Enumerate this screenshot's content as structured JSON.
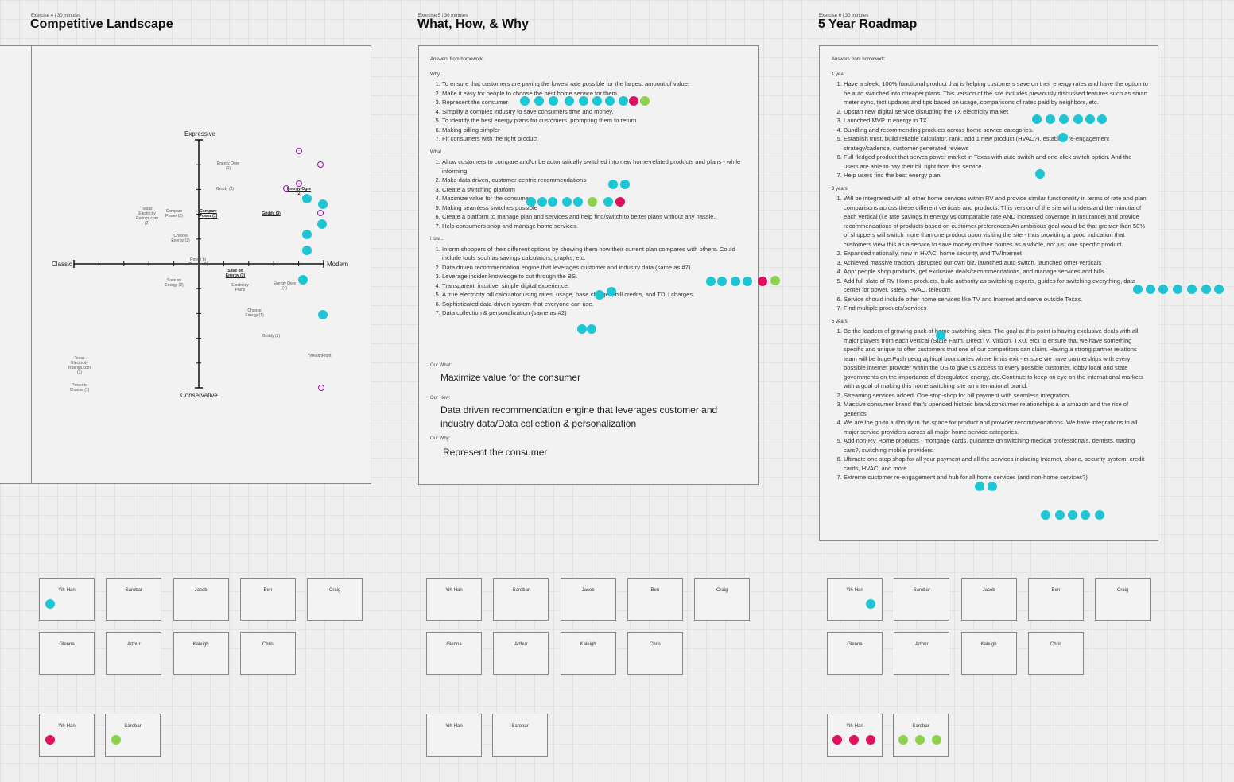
{
  "sections": [
    {
      "meta": "Exercise 4 | 30 minutes",
      "title": "Competitive Landscape",
      "landscape": {
        "axes": {
          "top": "Expressive",
          "bottom": "Conservative",
          "left": "Classic",
          "right": "Modern"
        },
        "labels": [
          "Energy Ogre (1)",
          "Griddy (2)",
          "Texas Electricity Ratings.com (2)",
          "Compare Power (2)",
          "Compare Power (1)",
          "Griddy (3)",
          "Energy Ogre (2)",
          "Choose Energy (2)",
          "Power to Choose (2)",
          "Save on Energy (3)",
          "Save on Energy (2)",
          "Electricity Plans",
          "Energy Ogre (4)",
          "Choose Energy (1)",
          "Griddy (1)",
          "*WealthFront",
          "Texas Electricity Ratings.com (1)",
          "Power to Choose (1)"
        ]
      },
      "boards": {
        "rows": [
          [
            "Yih-Han",
            "Sarobar",
            "Jacob",
            "Ben",
            "Craig"
          ],
          [
            "Glenna",
            "Arthur",
            "Kaleigh",
            "Chris"
          ]
        ],
        "bottom": [
          "Yih-Han",
          "Sarobar"
        ]
      }
    },
    {
      "meta": "Exercise 5 | 30 minutes",
      "title": "What, How, & Why",
      "answers": {
        "intro": "Answers from homework:",
        "groups": [
          {
            "heading": "Why...",
            "items": [
              "To ensure that customers are paying the lowest rate possible for the largest amount of value.",
              "Make it easy for people to choose the best home service for them.",
              "Represent the consumer",
              "Simplify a complex industry to save consumers time and money.",
              "To identify the best energy plans for customers, prompting them to return",
              "Making billing simpler",
              "Fit consumers with the right product"
            ]
          },
          {
            "heading": "What...",
            "items": [
              "Allow customers to compare and/or be automatically switched into new home-related products and plans - while informing",
              "Make data driven, customer-centric recommendations",
              "Create a switching platform",
              "Maximize value for the consumer",
              "Making seamless switches possible",
              "Create a platform to manage plan and services and help find/switch to better plans without any hassle.",
              "Help consumers shop and manage home services."
            ]
          },
          {
            "heading": "How...",
            "items": [
              "Inform shoppers of their different options by showing them how their current plan compares with others. Could include tools such as savings calculators, graphs, etc.",
              "Data driven recommendation engine that leverages customer and industry data (same as #7)",
              "Leverage insider knowledge to cut through the BS.",
              "Transparent, intuitive, simple digital experience.",
              "A true electricity bill calculator using rates, usage, base charges, bill credits, and TDU charges.",
              "Sophisticated data-driven system that everyone can use.",
              "Data collection & personalization (same as #2)"
            ]
          }
        ]
      },
      "summary": [
        {
          "label": "Our What:",
          "text": "Maximize value for the consumer"
        },
        {
          "label": "Our How:",
          "text": "Data driven recommendation engine that leverages customer and industry data/Data collection & personalization"
        },
        {
          "label": "Our Why:",
          "text": "Represent the consumer"
        }
      ],
      "boards": {
        "rows": [
          [
            "Yih-Han",
            "Sarobar",
            "Jacob",
            "Ben",
            "Craig"
          ],
          [
            "Glenna",
            "Arthur",
            "Kaleigh",
            "Chris"
          ]
        ],
        "bottom": [
          "Yih-Han",
          "Sarobar"
        ]
      }
    },
    {
      "meta": "Exercise 6 | 30 minutes",
      "title": "5 Year Roadmap",
      "answers": {
        "intro": "Answers from homework:",
        "groups": [
          {
            "heading": "1 year",
            "items": [
              "Have a sleek, 100% functional product that is helping customers save on their energy rates and have the option to be auto switched into cheaper plans. This version of the site includes previously discussed features such as smart meter sync, text updates and tips based on usage, comparisons of rates paid by neighbors, etc.",
              "Upstart new digital service disrupting the TX electricity market",
              "Launched MVP in energy in TX",
              "Bundling and recommending products across home service categories.",
              "Establish trust, build reliable calculator, rank, add 1 new product (HVAC?), establish re-engagement strategy/cadence, customer generated reviews",
              "Full fledged product that serves power market in Texas with auto switch and one-click switch option. And the users are able to pay their bill right from this service.",
              "Help users find the best energy plan."
            ]
          },
          {
            "heading": "3 years",
            "items": [
              "Will be integrated with all other home services within RV and provide similar functionality in terms of rate and plan comparisons across these different verticals and products. This version of the site will understand the minutia of each vertical (i.e rate savings in energy vs comparable rate AND increased coverage in insurance) and provide recommendations of products based on customer preferences.An ambitious goal would be that greater than 50% of shoppers will switch more than one product upon visiting the site - thus providing a good indication that customers view this as a service to save money on their homes as a whole, not just one specific product.",
              "Expanded nationally, now in HVAC, home security, and TV/Internet",
              "Achieved massive traction, disrupted our own biz, launched auto switch, launched other verticals",
              "App: people shop products, get exclusive deals/recommendations, and manage services and bills.",
              "Add full slate of RV Home products, build authority as switching experts, guides for switching everything, data center for power, safety, HVAC, telecom",
              "Service should include other home services like TV and Internet and serve outside Texas.",
              "Find multiple products/services"
            ]
          },
          {
            "heading": "5 years",
            "items": [
              "Be the leaders of growing pack of home switching sites. The goal at this point is having exclusive deals with all major players from each vertical (State Farm, DirectTV, Virizon, TXU, etc) to ensure that we have something specific and unique to offer customers that one of our competitors can claim. Having a strong partner relations team will be huge.Push geographical boundaries where limits exit - ensure we have partnerships with every possible internet provider within the US to give us access to every possible customer, lobby local and state governments on the importance of deregulated energy, etc.Continue to keep on eye on the international markets with a goal of making this home switching site an international brand.",
              "Streaming services added. One-stop-shop for bill payment with seamless integration.",
              "Massive consumer brand that's upended historic brand/consumer relationships a la amazon and the rise of generics",
              "We are the go-to authority in the space for product and provider recommendations. We have integrations to all major service providers across all major home service categories.",
              "Add non-RV Home products - mortgage cards, guidance on switching medical professionals, dentists, trading cars?, switching mobile providers.",
              "Ultimate one stop shop for all your payment and all the services including Internet, phone, security system, credit cards, HVAC, and more.",
              "Extreme customer re-engagement and hub for all home services (and non-home services?)"
            ]
          }
        ]
      },
      "boards": {
        "rows": [
          [
            "Yih-Han",
            "Sarobar",
            "Jacob",
            "Ben",
            "Craig"
          ],
          [
            "Glenna",
            "Arthur",
            "Kaleigh",
            "Chris"
          ]
        ],
        "bottom": [
          "Yih-Han",
          "Sarobar"
        ]
      }
    }
  ]
}
